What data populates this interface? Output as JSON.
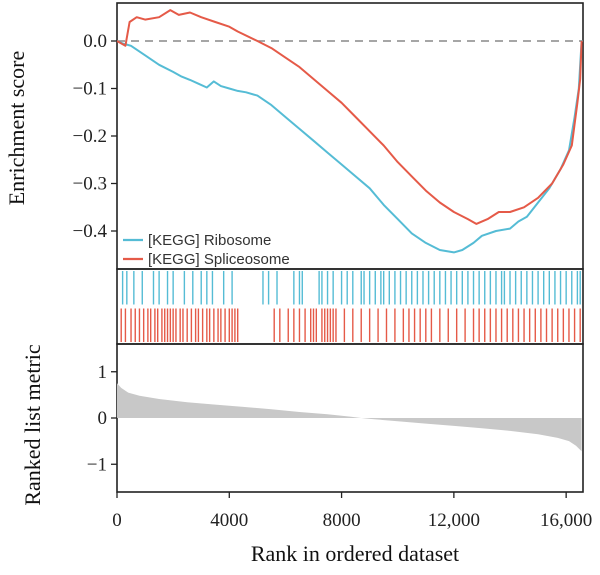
{
  "chart_data": {
    "type": "line",
    "xlabel": "Rank in ordered dataset",
    "x_ticks": [
      0,
      4000,
      8000,
      12000,
      16000
    ],
    "x_tick_labels": [
      "0",
      "4000",
      "8000",
      "12,000",
      "16,000"
    ],
    "xlim": [
      0,
      16600
    ],
    "panels": [
      {
        "name": "enrichment",
        "ylabel": "Enrichment score",
        "ylim": [
          -0.48,
          0.08
        ],
        "y_ticks": [
          0.0,
          -0.1,
          -0.2,
          -0.3,
          -0.4
        ],
        "y_tick_labels": [
          "0.0",
          "−0.1",
          "−0.2",
          "−0.3",
          "−0.4"
        ],
        "zero_line": "dashed",
        "legend_position": "bottom-left",
        "series": [
          {
            "name": "[KEGG] Ribosome",
            "color": "#55bcd5",
            "points": [
              [
                0,
                0
              ],
              [
                200,
                -0.005
              ],
              [
                500,
                -0.01
              ],
              [
                1000,
                -0.03
              ],
              [
                1500,
                -0.05
              ],
              [
                2000,
                -0.065
              ],
              [
                2300,
                -0.075
              ],
              [
                2600,
                -0.082
              ],
              [
                2900,
                -0.09
              ],
              [
                3200,
                -0.098
              ],
              [
                3450,
                -0.085
              ],
              [
                3700,
                -0.095
              ],
              [
                4000,
                -0.1
              ],
              [
                4300,
                -0.105
              ],
              [
                4600,
                -0.108
              ],
              [
                5000,
                -0.115
              ],
              [
                5500,
                -0.135
              ],
              [
                6000,
                -0.16
              ],
              [
                6500,
                -0.185
              ],
              [
                7000,
                -0.21
              ],
              [
                7500,
                -0.235
              ],
              [
                8000,
                -0.26
              ],
              [
                8500,
                -0.285
              ],
              [
                9000,
                -0.31
              ],
              [
                9500,
                -0.345
              ],
              [
                10000,
                -0.375
              ],
              [
                10500,
                -0.405
              ],
              [
                11000,
                -0.425
              ],
              [
                11500,
                -0.44
              ],
              [
                12000,
                -0.445
              ],
              [
                12300,
                -0.44
              ],
              [
                12700,
                -0.425
              ],
              [
                13000,
                -0.41
              ],
              [
                13500,
                -0.4
              ],
              [
                14000,
                -0.395
              ],
              [
                14300,
                -0.38
              ],
              [
                14600,
                -0.37
              ],
              [
                15000,
                -0.34
              ],
              [
                15400,
                -0.31
              ],
              [
                15800,
                -0.27
              ],
              [
                16100,
                -0.23
              ],
              [
                16300,
                -0.16
              ],
              [
                16450,
                -0.1
              ],
              [
                16550,
                0
              ]
            ]
          },
          {
            "name": "[KEGG] Spliceosome",
            "color": "#e55a48",
            "points": [
              [
                0,
                0
              ],
              [
                300,
                -0.01
              ],
              [
                450,
                0.04
              ],
              [
                700,
                0.05
              ],
              [
                1000,
                0.045
              ],
              [
                1500,
                0.05
              ],
              [
                1900,
                0.065
              ],
              [
                2200,
                0.055
              ],
              [
                2600,
                0.06
              ],
              [
                3000,
                0.05
              ],
              [
                3500,
                0.04
              ],
              [
                4000,
                0.03
              ],
              [
                4300,
                0.02
              ],
              [
                5000,
                0.0
              ],
              [
                5500,
                -0.015
              ],
              [
                6000,
                -0.035
              ],
              [
                6500,
                -0.055
              ],
              [
                7000,
                -0.08
              ],
              [
                7500,
                -0.105
              ],
              [
                8000,
                -0.13
              ],
              [
                8500,
                -0.16
              ],
              [
                9000,
                -0.19
              ],
              [
                9500,
                -0.22
              ],
              [
                10000,
                -0.255
              ],
              [
                10500,
                -0.285
              ],
              [
                11000,
                -0.315
              ],
              [
                11500,
                -0.34
              ],
              [
                12000,
                -0.36
              ],
              [
                12500,
                -0.375
              ],
              [
                12800,
                -0.385
              ],
              [
                13200,
                -0.375
              ],
              [
                13600,
                -0.36
              ],
              [
                14000,
                -0.36
              ],
              [
                14500,
                -0.35
              ],
              [
                15000,
                -0.33
              ],
              [
                15500,
                -0.3
              ],
              [
                15900,
                -0.26
              ],
              [
                16200,
                -0.22
              ],
              [
                16400,
                -0.13
              ],
              [
                16500,
                -0.08
              ],
              [
                16550,
                0.0
              ]
            ]
          }
        ]
      },
      {
        "name": "hit_barcode",
        "series_hits": [
          {
            "name": "[KEGG] Ribosome",
            "color": "#55bcd5",
            "rows": "top",
            "positions": [
              200,
              350,
              600,
              900,
              1300,
              1500,
              1800,
              2000,
              2400,
              2700,
              3000,
              3200,
              3400,
              3800,
              4100,
              5200,
              5400,
              5700,
              6300,
              6500,
              6600,
              7200,
              7300,
              7500,
              7700,
              8000,
              8200,
              8400,
              8700,
              8800,
              9000,
              9200,
              9400,
              9500,
              9700,
              9900,
              10100,
              10300,
              10500,
              10700,
              10900,
              11100,
              11300,
              11500,
              11700,
              11900,
              12100,
              12300,
              12500,
              12700,
              12900,
              13100,
              13300,
              13500,
              13700,
              13800,
              14000,
              14200,
              14400,
              14600,
              14800,
              15000,
              15200,
              15400,
              15600,
              15800,
              16000,
              16200,
              16400,
              16500
            ]
          },
          {
            "name": "[KEGG] Spliceosome",
            "color": "#e55a48",
            "rows": "bottom",
            "positions": [
              150,
              300,
              500,
              650,
              800,
              950,
              1100,
              1200,
              1350,
              1450,
              1600,
              1700,
              1800,
              1900,
              2000,
              2100,
              2250,
              2350,
              2500,
              2650,
              2800,
              2900,
              3050,
              3200,
              3300,
              3450,
              3600,
              3700,
              3850,
              4000,
              4100,
              4200,
              4300,
              5600,
              5800,
              6100,
              6300,
              6500,
              6700,
              6900,
              7000,
              7100,
              7300,
              7400,
              7500,
              7600,
              7700,
              7800,
              8100,
              8400,
              8700,
              9000,
              9300,
              9600,
              9900,
              10200,
              10400,
              10600,
              10800,
              11000,
              11200,
              11500,
              11800,
              12100,
              12400,
              12700,
              12900,
              13100,
              13300,
              13500,
              13700,
              13900,
              14100,
              14300,
              14500,
              14700,
              14900,
              15100,
              15300,
              15500,
              15700,
              15900,
              16100,
              16300,
              16500
            ]
          }
        ]
      },
      {
        "name": "ranked_metric",
        "ylabel": "Ranked list metric",
        "ylim": [
          -1.6,
          1.6
        ],
        "y_ticks": [
          1,
          0,
          -1
        ],
        "y_tick_labels": [
          "1",
          "0",
          "−1"
        ],
        "fill_color": "#c8c8c8",
        "points": [
          [
            0,
            0.75
          ],
          [
            150,
            0.65
          ],
          [
            400,
            0.55
          ],
          [
            800,
            0.48
          ],
          [
            1500,
            0.41
          ],
          [
            2500,
            0.34
          ],
          [
            3500,
            0.29
          ],
          [
            4500,
            0.24
          ],
          [
            5500,
            0.19
          ],
          [
            6500,
            0.13
          ],
          [
            7500,
            0.08
          ],
          [
            8300,
            0.03
          ],
          [
            8700,
            0.0
          ],
          [
            9000,
            -0.02
          ],
          [
            10000,
            -0.07
          ],
          [
            11000,
            -0.12
          ],
          [
            12000,
            -0.17
          ],
          [
            13000,
            -0.22
          ],
          [
            14000,
            -0.28
          ],
          [
            15000,
            -0.35
          ],
          [
            15700,
            -0.43
          ],
          [
            16100,
            -0.5
          ],
          [
            16350,
            -0.6
          ],
          [
            16550,
            -0.72
          ]
        ]
      }
    ],
    "legend": [
      "[KEGG] Ribosome",
      "[KEGG] Spliceosome"
    ]
  }
}
